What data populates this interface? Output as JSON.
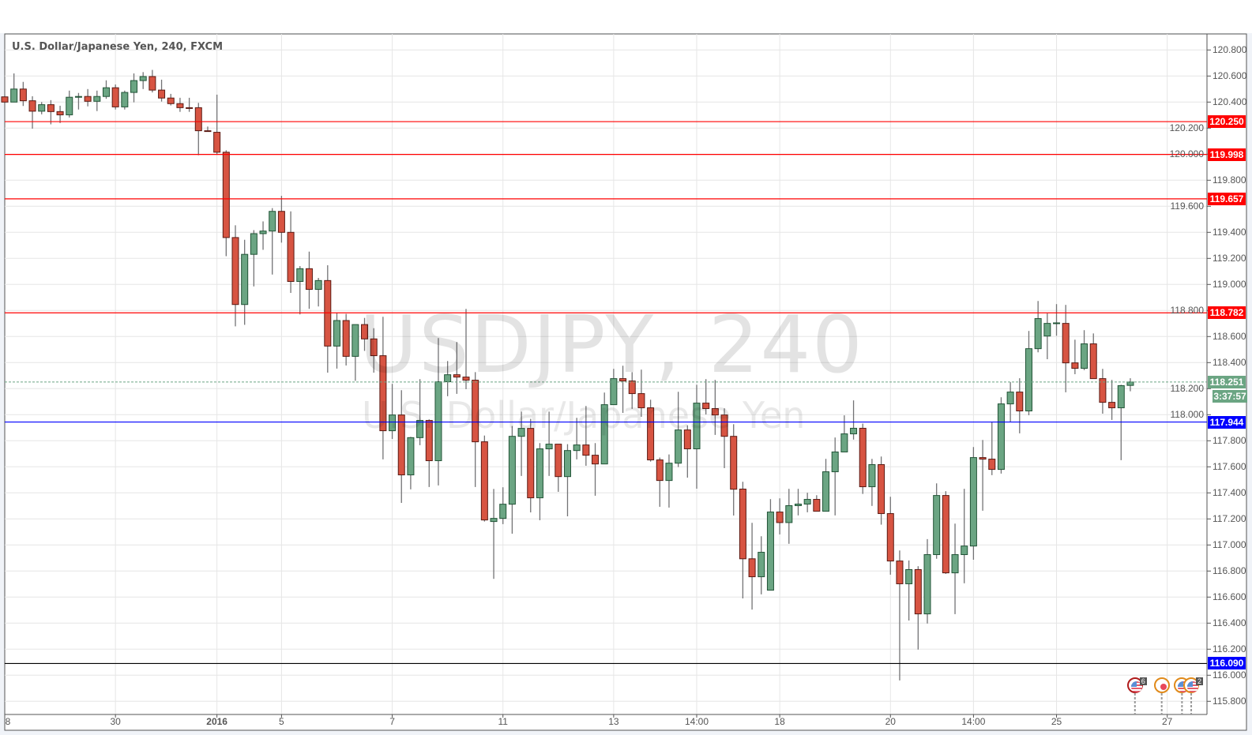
{
  "title": "U.S. Dollar/Japanese Yen, 240, FXCM",
  "watermark": {
    "symbol": "USDJPY, 240",
    "name": "U.S. Dollar/Japanese Yen"
  },
  "current_price": {
    "value": "118.251",
    "countdown": "3:37:57",
    "color": "#6ba583"
  },
  "colors": {
    "up_fill": "#6ba583",
    "up_border": "#225437",
    "down_fill": "#d75442",
    "down_border": "#5b1a13",
    "wick": "#737375",
    "grid": "#e6e6e6"
  },
  "chart_data": {
    "type": "candlestick",
    "title": "U.S. Dollar/Japanese Yen, 240, FXCM",
    "ylim": [
      115.7,
      120.92
    ],
    "grid": true,
    "y_ticks": [
      "115.800",
      "116.000",
      "116.200",
      "116.400",
      "116.600",
      "116.800",
      "117.000",
      "117.200",
      "117.400",
      "117.600",
      "117.800",
      "118.000",
      "118.200",
      "118.400",
      "118.600",
      "118.800",
      "119.000",
      "119.200",
      "119.400",
      "119.600",
      "119.800",
      "120.000",
      "120.200",
      "120.400",
      "120.600",
      "120.800"
    ],
    "x_ticks": [
      {
        "label": "8",
        "bar": 0
      },
      {
        "label": "30",
        "bar": 12
      },
      {
        "label": "2016",
        "bar": 23
      },
      {
        "label": "5",
        "bar": 30
      },
      {
        "label": "7",
        "bar": 42
      },
      {
        "label": "11",
        "bar": 54
      },
      {
        "label": "13",
        "bar": 66
      },
      {
        "label": "14:00",
        "bar": 75
      },
      {
        "label": "18",
        "bar": 84
      },
      {
        "label": "20",
        "bar": 96
      },
      {
        "label": "14:00",
        "bar": 105
      },
      {
        "label": "25",
        "bar": 114
      },
      {
        "label": "27",
        "bar": 126
      }
    ],
    "horizontal_lines": [
      {
        "price": 120.25,
        "label": "120.250",
        "color": "#ff0000"
      },
      {
        "price": 119.998,
        "label": "119.998",
        "color": "#ff0000"
      },
      {
        "price": 119.657,
        "label": "119.657",
        "color": "#ff0000"
      },
      {
        "price": 118.782,
        "label": "118.782",
        "color": "#ff0000"
      },
      {
        "price": 117.944,
        "label": "117.944",
        "color": "#0000ff"
      },
      {
        "price": 116.09,
        "label": "116.090",
        "color": "#000000",
        "label_color": "#0000ff"
      }
    ],
    "ohlc": [
      [
        120.44,
        120.46,
        120.39,
        120.4
      ],
      [
        120.4,
        120.62,
        120.4,
        120.5
      ],
      [
        120.5,
        120.555,
        120.37,
        120.41
      ],
      [
        120.41,
        120.445,
        120.196,
        120.33
      ],
      [
        120.33,
        120.4,
        120.306,
        120.38
      ],
      [
        120.38,
        120.415,
        120.229,
        120.327
      ],
      [
        120.327,
        120.372,
        120.239,
        120.302
      ],
      [
        120.302,
        120.488,
        120.282,
        120.437
      ],
      [
        120.437,
        120.47,
        120.343,
        120.443
      ],
      [
        120.443,
        120.5,
        120.367,
        120.406
      ],
      [
        120.406,
        120.488,
        120.331,
        120.443
      ],
      [
        120.443,
        120.567,
        120.425,
        120.51
      ],
      [
        120.51,
        120.535,
        120.343,
        120.363
      ],
      [
        120.363,
        120.488,
        120.343,
        120.474
      ],
      [
        120.474,
        120.62,
        120.398,
        120.565
      ],
      [
        120.565,
        120.63,
        120.5,
        120.596
      ],
      [
        120.596,
        120.647,
        120.474,
        120.492
      ],
      [
        120.492,
        120.572,
        120.404,
        120.431
      ],
      [
        120.431,
        120.463,
        120.374,
        120.388
      ],
      [
        120.388,
        120.433,
        120.325,
        120.357
      ],
      [
        120.357,
        120.433,
        120.325,
        120.355
      ],
      [
        120.357,
        120.394,
        119.992,
        120.18
      ],
      [
        120.18,
        120.212,
        120.174,
        120.176
      ],
      [
        120.168,
        120.457,
        120.0,
        120.015
      ],
      [
        120.015,
        120.03,
        119.217,
        119.36
      ],
      [
        119.36,
        119.454,
        118.678,
        118.846
      ],
      [
        118.846,
        119.343,
        118.69,
        119.231
      ],
      [
        119.231,
        119.417,
        118.985,
        119.39
      ],
      [
        119.39,
        119.484,
        119.266,
        119.41
      ],
      [
        119.41,
        119.586,
        119.076,
        119.561
      ],
      [
        119.561,
        119.68,
        119.321,
        119.4
      ],
      [
        119.4,
        119.561,
        118.935,
        119.023
      ],
      [
        119.023,
        119.141,
        118.77,
        119.121
      ],
      [
        119.121,
        119.252,
        118.813,
        118.962
      ],
      [
        118.962,
        119.05,
        118.831,
        119.03
      ],
      [
        119.03,
        119.147,
        118.323,
        118.527
      ],
      [
        118.527,
        118.784,
        118.354,
        118.723
      ],
      [
        118.723,
        118.774,
        118.378,
        118.448
      ],
      [
        118.448,
        118.692,
        118.26,
        118.692
      ],
      [
        118.692,
        118.743,
        118.49,
        118.582
      ],
      [
        118.582,
        118.664,
        118.323,
        118.453
      ],
      [
        118.453,
        118.752,
        117.657,
        117.877
      ],
      [
        117.877,
        118.237,
        117.814,
        117.998
      ],
      [
        117.998,
        118.188,
        117.323,
        117.538
      ],
      [
        117.538,
        117.83,
        117.427,
        117.824
      ],
      [
        117.824,
        118.273,
        117.766,
        117.956
      ],
      [
        117.956,
        117.964,
        117.445,
        117.647
      ],
      [
        117.647,
        118.588,
        117.457,
        118.253
      ],
      [
        118.253,
        118.412,
        118.142,
        118.307
      ],
      [
        118.307,
        118.558,
        118.16,
        118.289
      ],
      [
        118.289,
        118.812,
        118.196,
        118.265
      ],
      [
        118.265,
        118.327,
        117.445,
        117.792
      ],
      [
        117.792,
        117.84,
        117.18,
        117.192
      ],
      [
        117.18,
        117.43,
        116.74,
        117.204
      ],
      [
        117.204,
        117.443,
        117.16,
        117.313
      ],
      [
        117.313,
        117.913,
        117.087,
        117.834
      ],
      [
        117.834,
        118.024,
        117.53,
        117.895
      ],
      [
        117.895,
        117.968,
        117.25,
        117.362
      ],
      [
        117.362,
        117.782,
        117.19,
        117.738
      ],
      [
        117.738,
        118.024,
        117.53,
        117.774
      ],
      [
        117.774,
        117.774,
        117.408,
        117.525
      ],
      [
        117.525,
        117.774,
        117.22,
        117.725
      ],
      [
        117.725,
        117.976,
        117.657,
        117.768
      ],
      [
        117.768,
        118.067,
        117.608,
        117.689
      ],
      [
        117.689,
        117.782,
        117.378,
        117.622
      ],
      [
        117.622,
        118.17,
        117.622,
        118.077
      ],
      [
        118.077,
        118.352,
        118.077,
        118.277
      ],
      [
        118.277,
        118.376,
        118.014,
        118.259
      ],
      [
        118.259,
        118.327,
        118.045,
        118.162
      ],
      [
        118.162,
        118.346,
        117.984,
        118.053
      ],
      [
        118.053,
        118.115,
        117.64,
        117.653
      ],
      [
        117.653,
        117.671,
        117.293,
        117.495
      ],
      [
        117.495,
        117.695,
        117.287,
        117.628
      ],
      [
        117.628,
        118.176,
        117.598,
        117.883
      ],
      [
        117.883,
        117.919,
        117.517,
        117.738
      ],
      [
        117.738,
        118.23,
        117.432,
        118.089
      ],
      [
        118.089,
        118.273,
        118.002,
        118.047
      ],
      [
        118.047,
        118.267,
        117.845,
        117.998
      ],
      [
        117.998,
        118.049,
        117.59,
        117.834
      ],
      [
        117.834,
        117.927,
        117.226,
        117.428
      ],
      [
        117.429,
        117.485,
        116.59,
        116.894
      ],
      [
        116.894,
        117.17,
        116.504,
        116.756
      ],
      [
        116.756,
        117.067,
        116.621,
        116.944
      ],
      [
        116.653,
        117.352,
        116.653,
        117.253
      ],
      [
        117.253,
        117.358,
        117.081,
        117.172
      ],
      [
        117.172,
        117.431,
        117.009,
        117.302
      ],
      [
        117.302,
        117.431,
        117.227,
        117.314
      ],
      [
        117.314,
        117.401,
        117.251,
        117.35
      ],
      [
        117.35,
        117.382,
        117.259,
        117.259
      ],
      [
        117.259,
        117.661,
        117.259,
        117.562
      ],
      [
        117.562,
        117.825,
        117.227,
        117.714
      ],
      [
        117.714,
        117.995,
        117.714,
        117.853
      ],
      [
        117.853,
        118.11,
        117.809,
        117.896
      ],
      [
        117.896,
        117.932,
        117.392,
        117.447
      ],
      [
        117.447,
        117.661,
        117.3,
        117.617
      ],
      [
        117.617,
        117.679,
        117.156,
        117.241
      ],
      [
        117.241,
        117.37,
        116.772,
        116.877
      ],
      [
        116.877,
        116.958,
        115.96,
        116.702
      ],
      [
        116.702,
        116.881,
        116.42,
        116.811
      ],
      [
        116.811,
        116.837,
        116.197,
        116.471
      ],
      [
        116.471,
        117.045,
        116.397,
        116.926
      ],
      [
        116.926,
        117.473,
        116.894,
        117.38
      ],
      [
        117.38,
        117.413,
        116.778,
        116.786
      ],
      [
        116.786,
        117.164,
        116.469,
        116.926
      ],
      [
        116.926,
        117.431,
        116.706,
        116.992
      ],
      [
        116.992,
        117.752,
        116.887,
        117.671
      ],
      [
        117.671,
        117.806,
        117.263,
        117.659
      ],
      [
        117.659,
        117.944,
        117.536,
        117.58
      ],
      [
        117.58,
        118.134,
        117.548,
        118.083
      ],
      [
        118.083,
        118.25,
        117.944,
        118.174
      ],
      [
        118.174,
        118.28,
        117.857,
        118.029
      ],
      [
        118.029,
        118.643,
        117.996,
        118.507
      ],
      [
        118.507,
        118.873,
        118.479,
        118.738
      ],
      [
        118.604,
        118.778,
        118.426,
        118.701
      ],
      [
        118.7,
        118.849,
        118.606,
        118.705
      ],
      [
        118.701,
        118.843,
        118.172,
        118.398
      ],
      [
        118.398,
        118.576,
        118.311,
        118.356
      ],
      [
        118.356,
        118.649,
        118.342,
        118.544
      ],
      [
        118.544,
        118.624,
        118.277,
        118.277
      ],
      [
        118.277,
        118.352,
        118.008,
        118.095
      ],
      [
        118.095,
        118.267,
        117.96,
        118.053
      ],
      [
        118.053,
        118.23,
        117.651,
        118.223
      ],
      [
        118.225,
        118.28,
        118.18,
        118.251
      ]
    ],
    "events": [
      {
        "bar": 122.5,
        "icon": "us-flag-icon",
        "count": "6",
        "border": "#b01c1c"
      },
      {
        "bar": 125.4,
        "icon": "red-dot-icon",
        "count": "",
        "border": "#e08a1a"
      },
      {
        "bar": 127.6,
        "icon": "us-flag-icon",
        "count": "",
        "border": "#e08a1a"
      },
      {
        "bar": 128.6,
        "icon": "us-flag-icon",
        "count": "2",
        "border": "#e08a1a"
      }
    ]
  }
}
